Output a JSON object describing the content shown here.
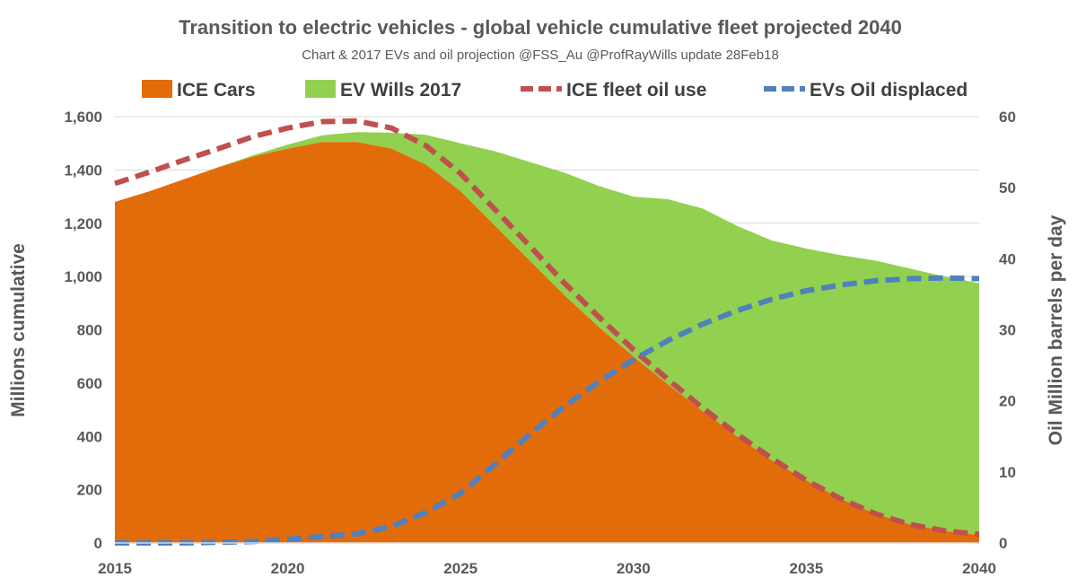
{
  "chart_data": {
    "type": "area",
    "title": "Transition to electric vehicles - global vehicle cumulative fleet projected 2040",
    "subtitle": "Chart & 2017 EVs and oil projection @FSS_Au @ProfRayWills  update 28Feb18",
    "x": [
      2015,
      2016,
      2017,
      2018,
      2019,
      2020,
      2021,
      2022,
      2023,
      2024,
      2025,
      2026,
      2027,
      2028,
      2029,
      2030,
      2031,
      2032,
      2033,
      2034,
      2035,
      2036,
      2037,
      2038,
      2039,
      2040
    ],
    "x_ticks": [
      "2015",
      "2020",
      "2025",
      "2030",
      "2035",
      "2040"
    ],
    "xlim": [
      2015,
      2040
    ],
    "ylabel": "Millions cumulative",
    "ylim": [
      0,
      1600
    ],
    "y_ticks": [
      "0",
      "200",
      "400",
      "600",
      "800",
      "1,000",
      "1,200",
      "1,400",
      "1,600"
    ],
    "y2label": "Oil Million barrels per day",
    "y2lim": [
      0,
      60
    ],
    "y2_ticks": [
      "0",
      "10",
      "20",
      "30",
      "40",
      "50",
      "60"
    ],
    "legend_position": "top",
    "series": [
      {
        "name": "ICE Cars",
        "type": "area",
        "axis": "left",
        "color": "#e36c0a",
        "values": [
          1280,
          1320,
          1365,
          1410,
          1450,
          1480,
          1505,
          1505,
          1480,
          1420,
          1320,
          1190,
          1060,
          930,
          810,
          700,
          595,
          495,
          400,
          310,
          235,
          165,
          110,
          70,
          45,
          30
        ]
      },
      {
        "name": "EV Wills 2017",
        "type": "area",
        "stacked": true,
        "axis": "left",
        "color": "#92d050",
        "values": [
          0,
          0,
          0,
          1,
          5,
          15,
          25,
          37,
          60,
          112,
          180,
          280,
          370,
          460,
          530,
          600,
          695,
          760,
          790,
          825,
          870,
          915,
          950,
          960,
          955,
          945
        ]
      },
      {
        "name": "ICE fleet oil use",
        "type": "line",
        "style": "dashed",
        "axis": "right",
        "color": "#c0504d",
        "values": [
          50.6,
          52.2,
          53.9,
          55.5,
          57.2,
          58.4,
          59.3,
          59.4,
          58.4,
          55.9,
          52.0,
          46.9,
          41.8,
          36.6,
          31.8,
          27.2,
          23.0,
          19.0,
          15.3,
          11.9,
          8.8,
          6.2,
          4.1,
          2.6,
          1.7,
          1.2
        ]
      },
      {
        "name": "EVs Oil displaced",
        "type": "line",
        "style": "dashed",
        "axis": "right",
        "color": "#4f81bd",
        "values": [
          0,
          0,
          0,
          0.1,
          0.2,
          0.5,
          0.9,
          1.3,
          2.3,
          4.3,
          7.0,
          11.1,
          15.3,
          19.2,
          22.7,
          25.8,
          28.5,
          30.8,
          32.7,
          34.3,
          35.5,
          36.3,
          36.9,
          37.2,
          37.3,
          37.2
        ]
      }
    ]
  }
}
